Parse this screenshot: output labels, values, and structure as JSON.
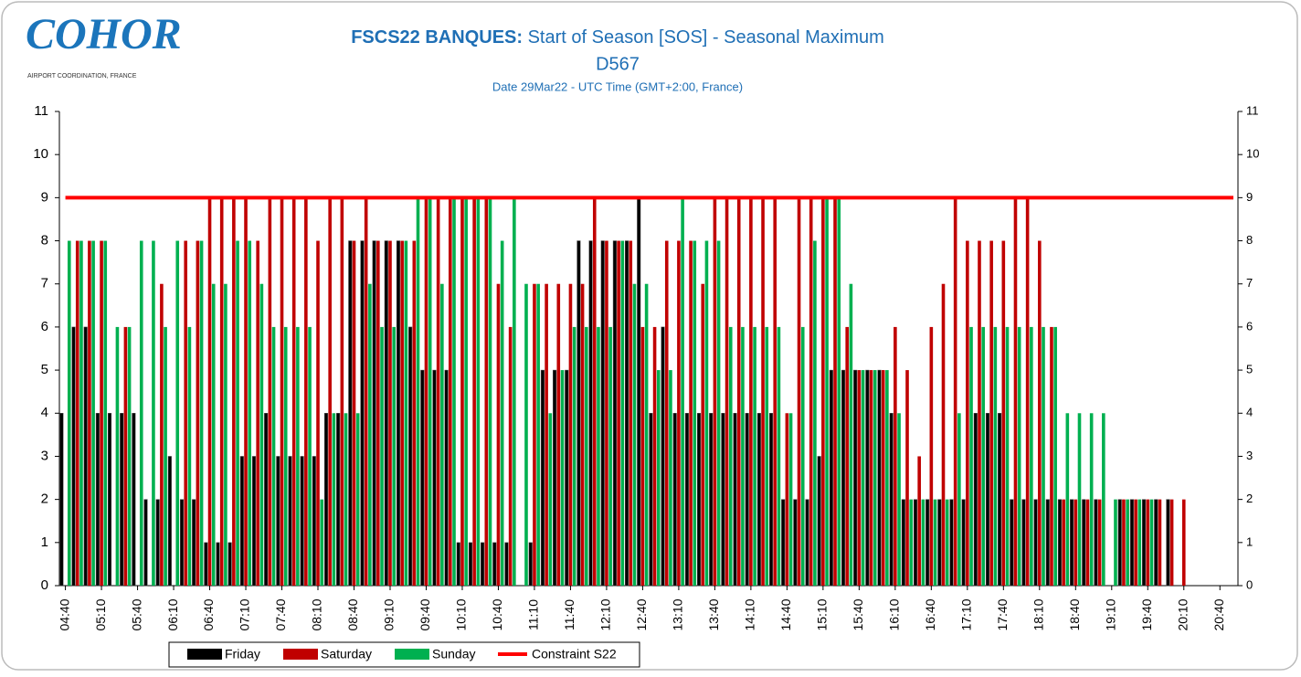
{
  "logo": {
    "name": "COHOR",
    "tagline": "AIRPORT COORDINATION, FRANCE"
  },
  "chart_data": {
    "type": "bar",
    "title_bold": "FSCS22 BANQUES:",
    "title": "Start of Season [SOS] - Seasonal Maximum",
    "title_line2": "D567",
    "subtitle": "Date 29Mar22 - UTC Time (GMT+2:00, France)",
    "categories": [
      "04:40",
      null,
      null,
      "05:10",
      null,
      null,
      "05:40",
      null,
      null,
      "06:10",
      null,
      null,
      "06:40",
      null,
      null,
      "07:10",
      null,
      null,
      "07:40",
      null,
      null,
      "08:10",
      null,
      null,
      "08:40",
      null,
      null,
      "09:10",
      null,
      null,
      "09:40",
      null,
      null,
      "10:10",
      null,
      null,
      "10:40",
      null,
      null,
      "11:10",
      null,
      null,
      "11:40",
      null,
      null,
      "12:10",
      null,
      null,
      "12:40",
      null,
      null,
      "13:10",
      null,
      null,
      "13:40",
      null,
      null,
      "14:10",
      null,
      null,
      "14:40",
      null,
      null,
      "15:10",
      null,
      null,
      "15:40",
      null,
      null,
      "16:10",
      null,
      null,
      "16:40",
      null,
      null,
      "17:10",
      null,
      null,
      "17:40",
      null,
      null,
      "18:10",
      null,
      null,
      "18:40",
      null,
      null,
      "19:10",
      null,
      null,
      "19:40",
      null,
      null,
      "20:10",
      null,
      null,
      "20:40",
      null
    ],
    "series": [
      {
        "name": "Friday",
        "color": "#000000",
        "values": [
          4,
          6,
          6,
          4,
          4,
          4,
          4,
          2,
          2,
          3,
          2,
          2,
          1,
          1,
          1,
          3,
          3,
          4,
          3,
          3,
          3,
          3,
          4,
          4,
          8,
          8,
          8,
          8,
          8,
          6,
          5,
          5,
          5,
          1,
          1,
          1,
          1,
          1,
          0,
          1,
          5,
          5,
          5,
          8,
          8,
          8,
          8,
          8,
          9,
          4,
          6,
          4,
          4,
          4,
          4,
          4,
          4,
          4,
          4,
          4,
          2,
          2,
          2,
          3,
          5,
          5,
          5,
          5,
          5,
          4,
          2,
          2,
          2,
          2,
          2,
          2,
          4,
          4,
          4,
          2,
          2,
          2,
          2,
          2,
          2,
          2,
          2,
          0,
          2,
          2,
          2,
          2,
          2,
          0,
          0,
          0,
          0,
          0
        ]
      },
      {
        "name": "Saturday",
        "color": "#c00000",
        "values": [
          0,
          8,
          8,
          8,
          0,
          6,
          0,
          0,
          7,
          0,
          8,
          8,
          9,
          9,
          9,
          9,
          8,
          9,
          9,
          9,
          9,
          8,
          9,
          9,
          8,
          9,
          8,
          8,
          8,
          8,
          9,
          9,
          9,
          9,
          9,
          9,
          7,
          6,
          0,
          7,
          7,
          7,
          7,
          7,
          9,
          8,
          8,
          8,
          6,
          6,
          8,
          8,
          8,
          7,
          9,
          9,
          9,
          9,
          9,
          9,
          4,
          9,
          9,
          9,
          9,
          6,
          5,
          5,
          5,
          6,
          5,
          3,
          6,
          7,
          9,
          8,
          8,
          8,
          8,
          9,
          9,
          8,
          6,
          2,
          2,
          2,
          2,
          0,
          2,
          2,
          2,
          2,
          2,
          2,
          0,
          0,
          0,
          0
        ]
      },
      {
        "name": "Sunday",
        "color": "#00b050",
        "values": [
          8,
          8,
          8,
          8,
          6,
          6,
          8,
          8,
          6,
          8,
          6,
          8,
          7,
          7,
          8,
          8,
          7,
          6,
          6,
          6,
          6,
          2,
          4,
          4,
          4,
          7,
          6,
          6,
          8,
          9,
          9,
          7,
          9,
          9,
          9,
          9,
          8,
          9,
          7,
          7,
          4,
          5,
          6,
          6,
          6,
          6,
          8,
          7,
          7,
          5,
          5,
          9,
          8,
          8,
          8,
          6,
          6,
          6,
          6,
          6,
          4,
          6,
          8,
          9,
          9,
          7,
          5,
          5,
          5,
          4,
          2,
          2,
          2,
          2,
          4,
          6,
          6,
          6,
          6,
          6,
          6,
          6,
          6,
          4,
          4,
          4,
          4,
          2,
          2,
          2,
          2,
          0,
          0,
          0,
          0,
          0,
          0,
          0
        ]
      }
    ],
    "constraint": {
      "name": "Constraint S22",
      "value": 9,
      "color": "#ff0000"
    },
    "ylim": [
      0,
      11
    ],
    "yticks": [
      0,
      1,
      2,
      3,
      4,
      5,
      6,
      7,
      8,
      9,
      10,
      11
    ],
    "y2lim": [
      0,
      11
    ],
    "y2ticks": [
      0,
      1,
      2,
      3,
      4,
      5,
      6,
      7,
      8,
      9,
      10,
      11
    ],
    "legend": "bottom"
  }
}
